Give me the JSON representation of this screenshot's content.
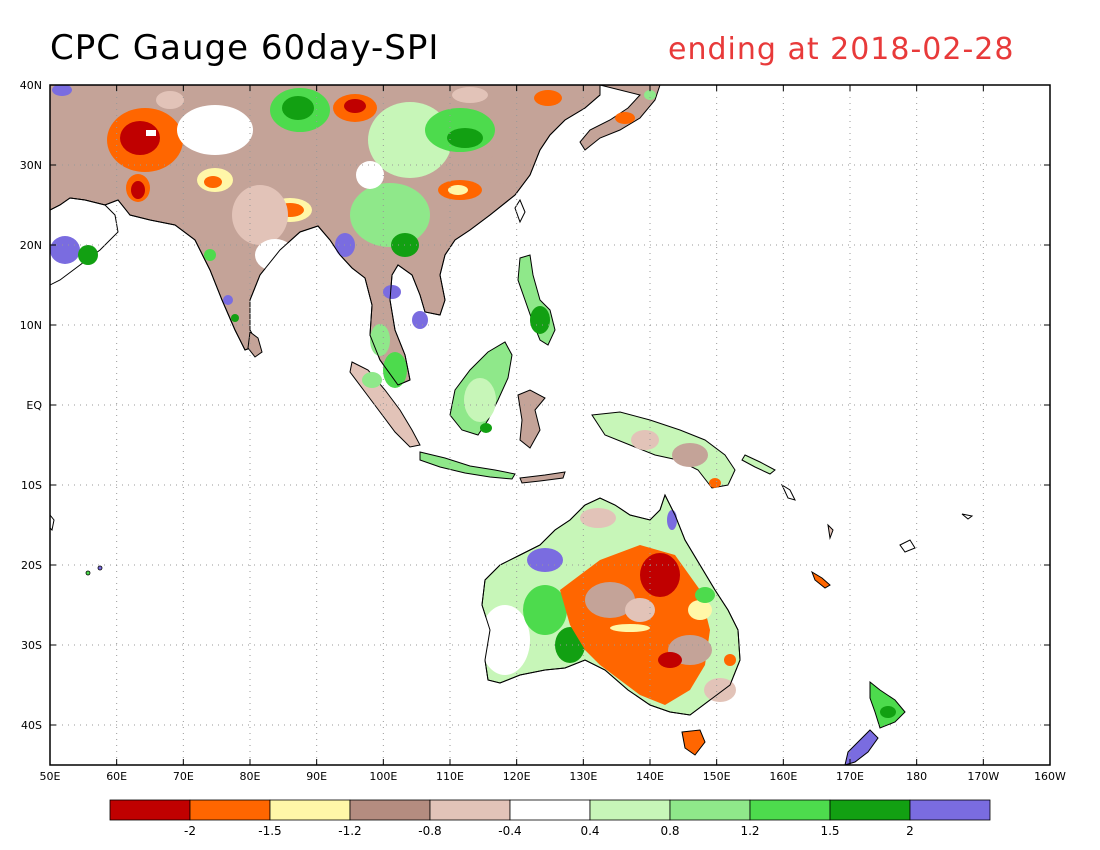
{
  "title": {
    "left": "CPC Gauge 60day-SPI",
    "right": "ending at 2018-02-28"
  },
  "map": {
    "lon_range": [
      50,
      200
    ],
    "lat_range": [
      -45,
      40
    ],
    "lon_ticks": [
      {
        "v": 50,
        "label": "50E"
      },
      {
        "v": 60,
        "label": "60E"
      },
      {
        "v": 70,
        "label": "70E"
      },
      {
        "v": 80,
        "label": "80E"
      },
      {
        "v": 90,
        "label": "90E"
      },
      {
        "v": 100,
        "label": "100E"
      },
      {
        "v": 110,
        "label": "110E"
      },
      {
        "v": 120,
        "label": "120E"
      },
      {
        "v": 130,
        "label": "130E"
      },
      {
        "v": 140,
        "label": "140E"
      },
      {
        "v": 150,
        "label": "150E"
      },
      {
        "v": 160,
        "label": "160E"
      },
      {
        "v": 170,
        "label": "170E"
      },
      {
        "v": 180,
        "label": "180"
      },
      {
        "v": 190,
        "label": "170W"
      },
      {
        "v": 200,
        "label": "160W"
      }
    ],
    "lat_ticks": [
      {
        "v": 40,
        "label": "40N"
      },
      {
        "v": 30,
        "label": "30N"
      },
      {
        "v": 20,
        "label": "20N"
      },
      {
        "v": 10,
        "label": "10N"
      },
      {
        "v": 0,
        "label": "EQ"
      },
      {
        "v": -10,
        "label": "10S"
      },
      {
        "v": -20,
        "label": "20S"
      },
      {
        "v": -30,
        "label": "30S"
      },
      {
        "v": -40,
        "label": "40S"
      }
    ]
  },
  "colorbar": {
    "colors": [
      "#c00000",
      "#ff6600",
      "#fff7a8",
      "#b48c80",
      "#e2c3b8",
      "#ffffff",
      "#c7f6b8",
      "#8fe88a",
      "#4ddb4d",
      "#12a012",
      "#7a6ce0"
    ],
    "labels": [
      "-2",
      "-1.5",
      "-1.2",
      "-0.8",
      "-0.4",
      "0.4",
      "0.8",
      "1.2",
      "1.5",
      "2"
    ]
  }
}
